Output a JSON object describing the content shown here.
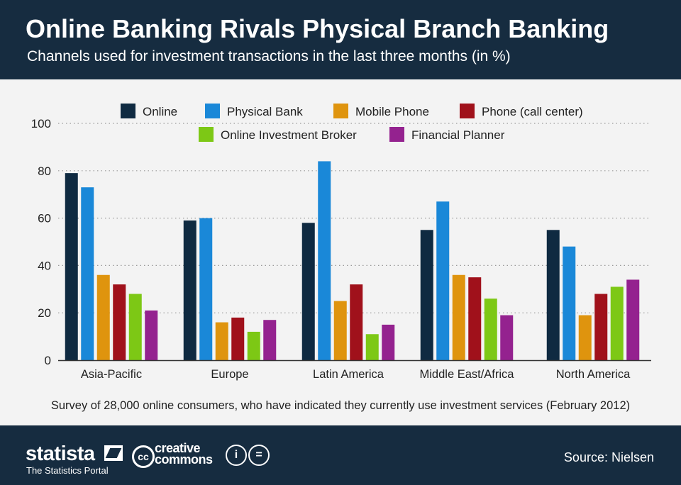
{
  "header": {
    "title": "Online Banking Rivals Physical Branch Banking",
    "subtitle": "Channels used for investment transactions in the last three months (in %)"
  },
  "footnote": "Survey of 28,000 online consumers, who have indicated they currently use investment services (February 2012)",
  "footer": {
    "brand": "statista",
    "tagline": "The Statistics Portal",
    "license_badge": "cc",
    "license_line1": "creative",
    "license_line2": "commons",
    "source": "Source: Nielsen"
  },
  "chart_data": {
    "type": "bar",
    "categories": [
      "Asia-Pacific",
      "Europe",
      "Latin America",
      "Middle East/Africa",
      "North America"
    ],
    "series": [
      {
        "name": "Online",
        "color": "#0f2a41",
        "values": [
          79,
          59,
          58,
          55,
          55
        ]
      },
      {
        "name": "Physical Bank",
        "color": "#1a88d8",
        "values": [
          73,
          60,
          84,
          67,
          48
        ]
      },
      {
        "name": "Mobile Phone",
        "color": "#df940e",
        "values": [
          36,
          16,
          25,
          36,
          19
        ]
      },
      {
        "name": "Phone (call center)",
        "color": "#a0111b",
        "values": [
          32,
          18,
          32,
          35,
          28
        ]
      },
      {
        "name": "Online Investment Broker",
        "color": "#7dc815",
        "values": [
          28,
          12,
          11,
          26,
          31
        ]
      },
      {
        "name": "Financial Planner",
        "color": "#94228f",
        "values": [
          21,
          17,
          15,
          19,
          34
        ]
      }
    ],
    "ylim": [
      0,
      100
    ],
    "yticks": [
      0,
      20,
      40,
      60,
      80,
      100
    ],
    "grid": "dotted horizontal",
    "legend": "top-center, two rows"
  }
}
